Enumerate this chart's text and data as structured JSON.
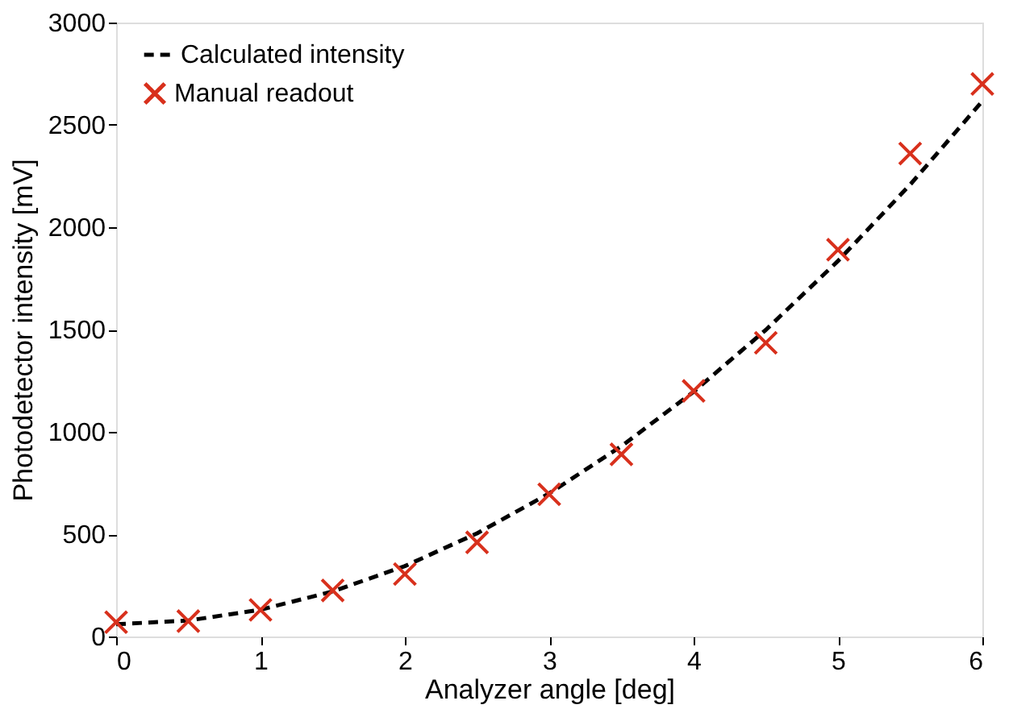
{
  "chart_data": {
    "type": "line",
    "xlabel": "Analyzer angle [deg]",
    "ylabel": "Photodetector intensity [mV]",
    "xlim": [
      0,
      6
    ],
    "xticks": [
      0,
      1,
      2,
      3,
      4,
      5,
      6
    ],
    "ylim": [
      0,
      3000
    ],
    "yticks": [
      0,
      500,
      1000,
      1500,
      2000,
      2500,
      3000
    ],
    "grid": false,
    "legend": "top left",
    "series": [
      {
        "name": "Calculated intensity",
        "color": "#000000",
        "line_style": "dashed",
        "marker": "none",
        "x": [
          0,
          0.5,
          1,
          1.5,
          2,
          2.5,
          3,
          3.5,
          4,
          4.5,
          5,
          5.5,
          6
        ],
        "values": [
          60,
          78,
          131,
          220,
          344,
          504,
          699,
          930,
          1196,
          1498,
          1835,
          2208,
          2616
        ]
      },
      {
        "name": "Manual readout",
        "type": "scatter",
        "color": "#d8301c",
        "marker": "cross",
        "x": [
          0,
          0.5,
          1,
          1.5,
          2,
          2.5,
          3,
          3.5,
          4,
          4.5,
          5,
          5.5,
          6
        ],
        "values": [
          70,
          75,
          130,
          225,
          305,
          460,
          695,
          890,
          1200,
          1435,
          1890,
          2360,
          2700
        ]
      }
    ]
  }
}
